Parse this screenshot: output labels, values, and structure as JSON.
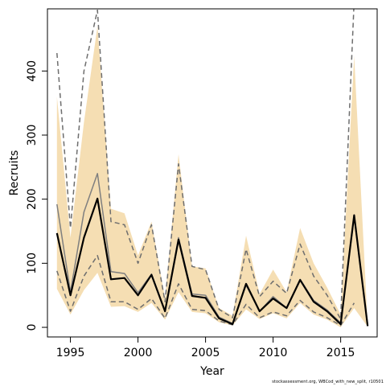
{
  "chart_data": {
    "type": "line",
    "title": "",
    "xlabel": "Year",
    "ylabel": "Recruits",
    "xlim": [
      1993.3,
      2017.7
    ],
    "ylim": [
      -15,
      497
    ],
    "x_ticks": [
      1995,
      2000,
      2005,
      2010,
      2015
    ],
    "y_ticks": [
      0,
      100,
      200,
      300,
      400
    ],
    "grid": false,
    "legend": "none",
    "colors": {
      "band": "#F5DEB3",
      "main": "#000000",
      "grey_line": "#7F7F7F",
      "dashed": "#6E6E6E"
    },
    "x": [
      1994,
      1995,
      1996,
      1997,
      1998,
      1999,
      2000,
      2001,
      2002,
      2003,
      2004,
      2005,
      2006,
      2007,
      2008,
      2009,
      2010,
      2011,
      2012,
      2013,
      2014,
      2015,
      2016,
      2017
    ],
    "band": {
      "upper": [
        360,
        140,
        320,
        470,
        185,
        178,
        112,
        165,
        45,
        270,
        95,
        92,
        30,
        18,
        143,
        52,
        90,
        55,
        155,
        100,
        62,
        20,
        424,
        4
      ],
      "lower": [
        60,
        20,
        58,
        85,
        32,
        33,
        24,
        38,
        12,
        55,
        24,
        22,
        8,
        3,
        28,
        13,
        22,
        14,
        38,
        20,
        12,
        0,
        30,
        1
      ]
    },
    "series": [
      {
        "role": "main",
        "values": [
          147,
          50,
          140,
          201,
          75,
          77,
          50,
          82,
          25,
          137,
          49,
          46,
          14,
          5,
          68,
          25,
          45,
          30,
          74,
          40,
          25,
          5,
          175,
          2
        ]
      },
      {
        "role": "grey",
        "values": [
          192,
          55,
          180,
          240,
          87,
          84,
          54,
          83,
          25,
          140,
          52,
          50,
          16,
          6,
          66,
          25,
          48,
          30,
          75,
          42,
          27,
          7,
          172,
          3
        ]
      },
      {
        "role": "dashed-upper",
        "values": [
          428,
          155,
          400,
          495,
          165,
          160,
          100,
          160,
          40,
          255,
          95,
          90,
          28,
          15,
          122,
          48,
          72,
          53,
          130,
          80,
          50,
          13,
          510,
          null
        ]
      },
      {
        "role": "dashed-lower",
        "values": [
          88,
          25,
          80,
          112,
          40,
          40,
          28,
          45,
          14,
          68,
          28,
          26,
          10,
          4,
          36,
          15,
          24,
          18,
          42,
          24,
          15,
          3,
          38,
          null
        ]
      }
    ]
  },
  "footnote": "stockassessment.org, WBCod_with_new_split, r10501"
}
